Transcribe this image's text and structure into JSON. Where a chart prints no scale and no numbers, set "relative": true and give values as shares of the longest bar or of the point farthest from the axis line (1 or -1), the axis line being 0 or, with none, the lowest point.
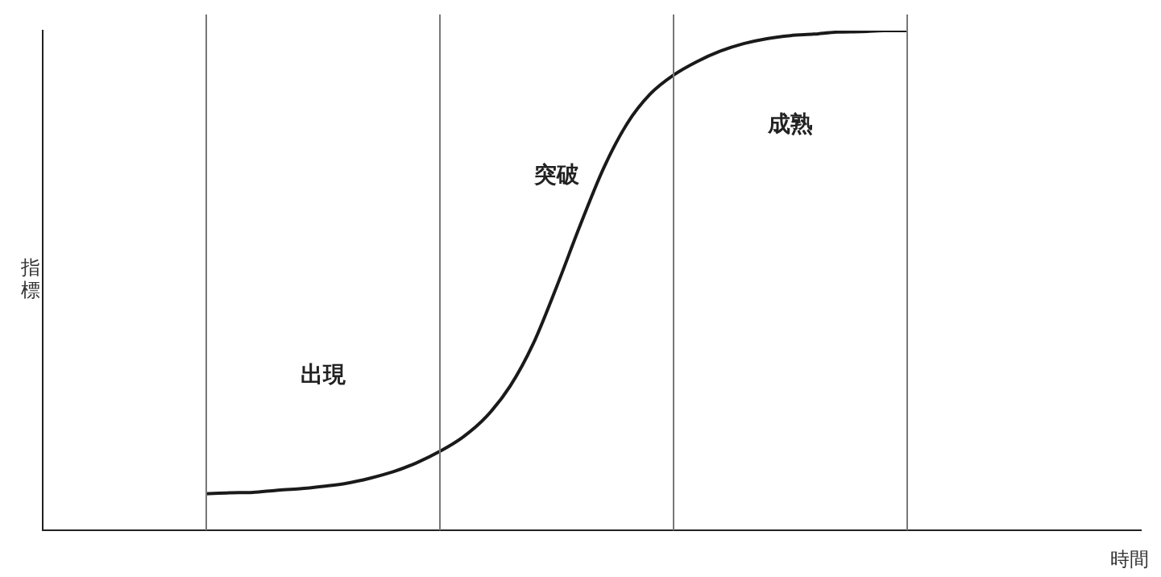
{
  "chart_data": {
    "type": "line",
    "relative": true,
    "xlabel": "時間",
    "ylabel": "指標",
    "categories": [
      null,
      null,
      null,
      null,
      null,
      null,
      null,
      null,
      null,
      null,
      null,
      null,
      null,
      null,
      null,
      null,
      null,
      null,
      null,
      null,
      null,
      null,
      null,
      null,
      null,
      null,
      null,
      null,
      null,
      null,
      null,
      null,
      null,
      null,
      null,
      null,
      null,
      null,
      null,
      null,
      null,
      null,
      null,
      null,
      null,
      null,
      null,
      null
    ],
    "series": [
      {
        "color": "#1a1a1a",
        "values": [
          null,
          null,
          null,
          null,
          null,
          null,
          null,
          0.073,
          0.075,
          0.076,
          0.08,
          0.083,
          0.088,
          0.094,
          0.104,
          0.117,
          0.135,
          0.158,
          0.187,
          0.228,
          0.288,
          0.374,
          0.488,
          0.61,
          0.724,
          0.813,
          0.873,
          0.911,
          0.938,
          0.959,
          0.974,
          0.984,
          0.99,
          0.993,
          0.997,
          0.998,
          1,
          1,
          null,
          null,
          null,
          null,
          null,
          null,
          null,
          null,
          null,
          null
        ]
      }
    ],
    "annotations": [
      "出現",
      "突破",
      "成熟"
    ],
    "grid": false,
    "legend": false,
    "marker": "none",
    "line_style": "solid"
  }
}
